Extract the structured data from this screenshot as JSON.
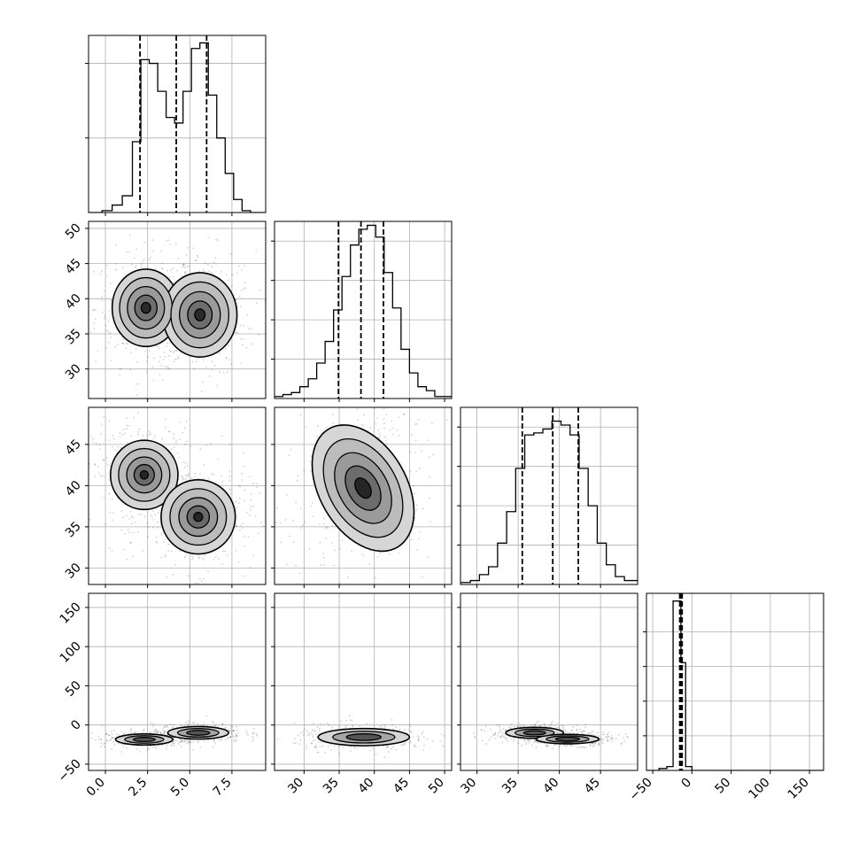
{
  "chart_data": {
    "type": "corner",
    "grid": true,
    "title": "",
    "variables": [
      {
        "range": [
          -1.0,
          9.5
        ],
        "ticks": [
          {
            "v": 0,
            "label": "0.0"
          },
          {
            "v": 2.5,
            "label": "2.5"
          },
          {
            "v": 5,
            "label": "5.0"
          },
          {
            "v": 7.5,
            "label": "7.5"
          }
        ],
        "quantiles": [
          2.05,
          4.2,
          6.0
        ]
      },
      {
        "range": [
          25.8,
          51.0
        ],
        "ticks": [
          {
            "v": 30,
            "label": "30"
          },
          {
            "v": 35,
            "label": "35"
          },
          {
            "v": 40,
            "label": "40"
          },
          {
            "v": 45,
            "label": "45"
          },
          {
            "v": 50,
            "label": "50"
          }
        ],
        "quantiles": [
          34.9,
          38.1,
          41.3
        ]
      },
      {
        "range": [
          28.0,
          49.5
        ],
        "ticks": [
          {
            "v": 30,
            "label": "30"
          },
          {
            "v": 35,
            "label": "35"
          },
          {
            "v": 40,
            "label": "40"
          },
          {
            "v": 45,
            "label": "45"
          }
        ],
        "quantiles": [
          35.5,
          39.2,
          42.3
        ]
      },
      {
        "range": [
          -58,
          168
        ],
        "ticks": [
          {
            "v": -50,
            "label": "−50"
          },
          {
            "v": 0,
            "label": "0"
          },
          {
            "v": 50,
            "label": "50"
          },
          {
            "v": 100,
            "label": "100"
          },
          {
            "v": 150,
            "label": "150"
          }
        ],
        "quantiles": [
          -15.5,
          -14,
          -12.5
        ]
      }
    ],
    "histograms": [
      {
        "edges": [
          -1.0,
          -0.2,
          0.4,
          1.0,
          1.6,
          2.1,
          2.6,
          3.1,
          3.6,
          4.1,
          4.6,
          5.1,
          5.6,
          6.1,
          6.6,
          7.1,
          7.6,
          8.1,
          8.6,
          9.1,
          9.5
        ],
        "counts": [
          0.0,
          0.01,
          0.04,
          0.09,
          0.38,
          0.82,
          0.8,
          0.65,
          0.51,
          0.48,
          0.65,
          0.88,
          0.91,
          0.63,
          0.4,
          0.21,
          0.07,
          0.01,
          0.0,
          0.0
        ],
        "ymax": 0.95,
        "grid_y": [
          0.4,
          0.8
        ]
      },
      {
        "edges": [
          25.8,
          27.0,
          28.2,
          29.4,
          30.6,
          31.8,
          33.0,
          34.2,
          35.4,
          36.6,
          37.8,
          39.0,
          40.2,
          41.4,
          42.6,
          43.8,
          45.0,
          46.2,
          47.4,
          48.6,
          51.0
        ],
        "counts": [
          0.01,
          0.02,
          0.03,
          0.06,
          0.1,
          0.18,
          0.29,
          0.45,
          0.62,
          0.78,
          0.86,
          0.88,
          0.82,
          0.64,
          0.46,
          0.25,
          0.13,
          0.06,
          0.04,
          0.01
        ],
        "ymax": 0.9,
        "grid_y": [
          0.2,
          0.4,
          0.6,
          0.8
        ]
      },
      {
        "edges": [
          28.0,
          29.2,
          30.3,
          31.4,
          32.5,
          33.6,
          34.7,
          35.8,
          36.9,
          38.0,
          39.1,
          40.2,
          41.3,
          42.4,
          43.5,
          44.6,
          45.7,
          46.8,
          47.9,
          49.5
        ],
        "counts": [
          0.01,
          0.02,
          0.05,
          0.09,
          0.21,
          0.37,
          0.59,
          0.76,
          0.77,
          0.79,
          0.83,
          0.81,
          0.76,
          0.59,
          0.4,
          0.21,
          0.1,
          0.04,
          0.02
        ],
        "ymax": 0.9,
        "grid_y": [
          0.2,
          0.4,
          0.6,
          0.8
        ]
      },
      {
        "edges": [
          -58,
          -42,
          -32,
          -24,
          -19,
          -14,
          -8,
          0,
          168
        ],
        "counts": [
          0.0,
          0.01,
          0.02,
          0.88,
          0.88,
          0.56,
          0.02,
          0.0
        ],
        "ymax": 0.92,
        "grid_y": [
          0.18,
          0.36,
          0.54,
          0.72
        ]
      }
    ],
    "pairs": [
      {
        "row": 1,
        "col": 0,
        "blobs": [
          {
            "cx": 2.4,
            "cy": 38.7,
            "rx": 2.0,
            "ry": 5.5
          },
          {
            "cx": 5.6,
            "cy": 37.7,
            "rx": 2.2,
            "ry": 6.0
          }
        ],
        "levels": [
          {
            "s": 1.0,
            "fill": "#d6d6d6"
          },
          {
            "s": 0.78,
            "fill": "#bcbcbc"
          },
          {
            "s": 0.55,
            "fill": "#9a9a9a"
          },
          {
            "s": 0.33,
            "fill": "#6e6e6e"
          },
          {
            "s": 0.14,
            "fill": "#2a2a2a"
          }
        ]
      },
      {
        "row": 2,
        "col": 0,
        "blobs": [
          {
            "cx": 2.3,
            "cy": 41.3,
            "rx": 2.0,
            "ry": 4.2
          },
          {
            "cx": 5.5,
            "cy": 36.2,
            "rx": 2.2,
            "ry": 4.5
          }
        ],
        "levels": [
          {
            "s": 1.0,
            "fill": "#d6d6d6"
          },
          {
            "s": 0.76,
            "fill": "#bcbcbc"
          },
          {
            "s": 0.52,
            "fill": "#999999"
          },
          {
            "s": 0.3,
            "fill": "#6a6a6a"
          },
          {
            "s": 0.12,
            "fill": "#262626"
          }
        ]
      },
      {
        "row": 2,
        "col": 1,
        "blobs": [
          {
            "cx": 38.4,
            "cy": 39.7,
            "rx": 6.2,
            "ry": 8.3,
            "rot": -30
          }
        ],
        "levels": [
          {
            "s": 1.0,
            "fill": "#d6d6d6"
          },
          {
            "s": 0.78,
            "fill": "#bcbcbc"
          },
          {
            "s": 0.56,
            "fill": "#9a9a9a"
          },
          {
            "s": 0.35,
            "fill": "#6c6c6c"
          },
          {
            "s": 0.16,
            "fill": "#262626"
          }
        ]
      },
      {
        "row": 3,
        "col": 0,
        "blobs": [
          {
            "cx": 2.3,
            "cy": -18.5,
            "rx": 1.7,
            "ry": 7.0
          },
          {
            "cx": 5.5,
            "cy": -10.0,
            "rx": 1.8,
            "ry": 8.0
          }
        ],
        "levels": [
          {
            "s": 1.0,
            "fill": "#d6d6d6"
          },
          {
            "s": 0.68,
            "fill": "#a6a6a6"
          },
          {
            "s": 0.38,
            "fill": "#555555"
          }
        ]
      },
      {
        "row": 3,
        "col": 1,
        "blobs": [
          {
            "cx": 38.5,
            "cy": -15.5,
            "rx": 6.5,
            "ry": 11.0
          }
        ],
        "levels": [
          {
            "s": 1.0,
            "fill": "#d6d6d6"
          },
          {
            "s": 0.68,
            "fill": "#a6a6a6"
          },
          {
            "s": 0.38,
            "fill": "#555555"
          }
        ]
      },
      {
        "row": 3,
        "col": 2,
        "blobs": [
          {
            "cx": 37.0,
            "cy": -10.0,
            "rx": 3.5,
            "ry": 7.0
          },
          {
            "cx": 41.0,
            "cy": -18.0,
            "rx": 3.8,
            "ry": 6.0
          }
        ],
        "levels": [
          {
            "s": 1.0,
            "fill": "#d6d6d6"
          },
          {
            "s": 0.68,
            "fill": "#a6a6a6"
          },
          {
            "s": 0.38,
            "fill": "#555555"
          }
        ]
      }
    ]
  }
}
